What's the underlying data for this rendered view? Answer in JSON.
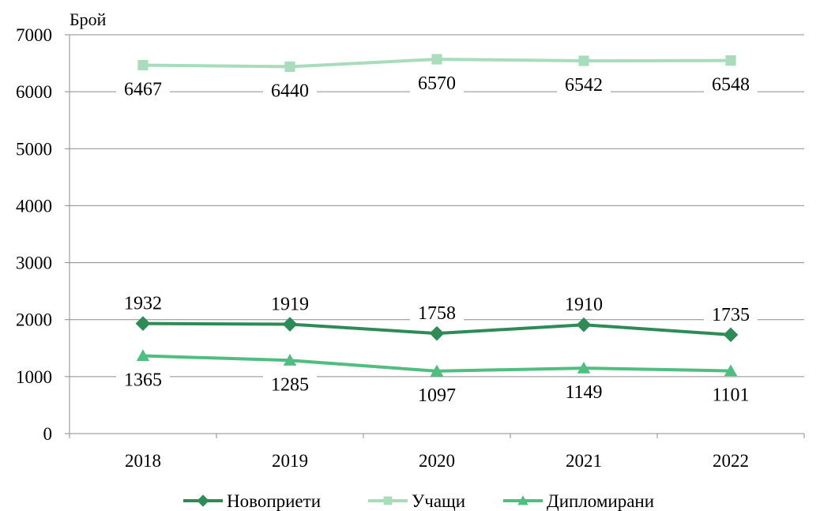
{
  "chart_data": {
    "type": "line",
    "ylabel": "Брой",
    "xlabel": "",
    "ylim": [
      0,
      7000
    ],
    "y_ticks": [
      0,
      1000,
      2000,
      3000,
      4000,
      5000,
      6000,
      7000
    ],
    "categories": [
      "2018",
      "2019",
      "2020",
      "2021",
      "2022"
    ],
    "grid": "horizontal",
    "legend_position": "bottom",
    "series": [
      {
        "name": "Новоприети",
        "values": [
          1932,
          1919,
          1758,
          1910,
          1735
        ],
        "color": "#2e8b57",
        "marker": "diamond",
        "label_position": "above"
      },
      {
        "name": "Учащи",
        "values": [
          6467,
          6440,
          6570,
          6542,
          6548
        ],
        "color": "#a8dcbc",
        "marker": "square",
        "label_position": "below"
      },
      {
        "name": "Дипломирани",
        "values": [
          1365,
          1285,
          1097,
          1149,
          1101
        ],
        "color": "#4fbe80",
        "marker": "triangle",
        "label_position": "below"
      }
    ]
  }
}
